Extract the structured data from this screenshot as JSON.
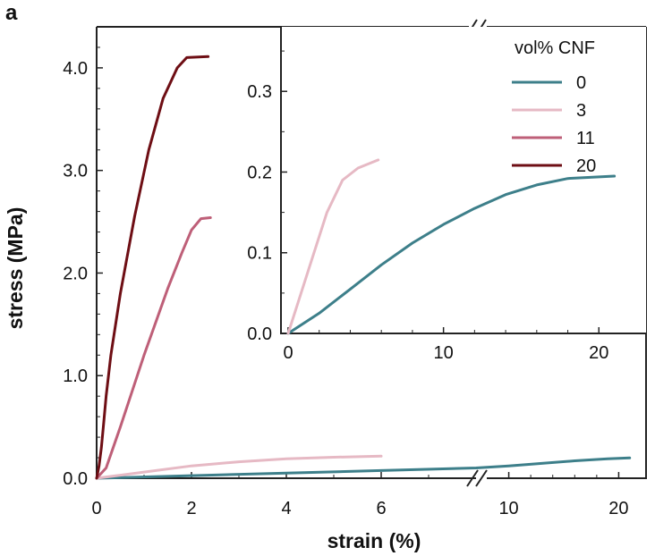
{
  "panel_label": "a",
  "colors": {
    "series_0": "#3d7f8a",
    "series_3": "#e6b9c4",
    "series_11": "#be5f78",
    "series_20": "#6e0e14",
    "axis": "#222222"
  },
  "chart_data": [
    {
      "id": "main",
      "type": "line",
      "xlabel": "strain (%)",
      "ylabel": "stress (MPa)",
      "axis_break": {
        "x_before": 8,
        "x_after": 8
      },
      "xlim_left": [
        0,
        8
      ],
      "xlim_right": [
        8,
        22
      ],
      "ylim": [
        0,
        4.4
      ],
      "xticks_left": [
        {
          "v": 0,
          "label": "0"
        },
        {
          "v": 2,
          "label": "2"
        },
        {
          "v": 4,
          "label": "4"
        },
        {
          "v": 6,
          "label": "6"
        }
      ],
      "xticks_right": [
        {
          "v": 10,
          "label": "10"
        },
        {
          "v": 20,
          "label": "20"
        }
      ],
      "yticks": [
        {
          "v": 0,
          "label": "0.0"
        },
        {
          "v": 1,
          "label": "1.0"
        },
        {
          "v": 2,
          "label": "2.0"
        },
        {
          "v": 3,
          "label": "3.0"
        },
        {
          "v": 4,
          "label": "4.0"
        }
      ],
      "series": [
        {
          "name": "0",
          "color_key": "series_0",
          "points": [
            [
              0,
              0
            ],
            [
              2,
              0.025
            ],
            [
              4,
              0.05
            ],
            [
              6,
              0.075
            ],
            [
              8,
              0.1
            ],
            [
              10,
              0.12
            ],
            [
              13,
              0.145
            ],
            [
              16,
              0.17
            ],
            [
              19,
              0.19
            ],
            [
              21,
              0.198
            ]
          ]
        },
        {
          "name": "3",
          "color_key": "series_3",
          "points": [
            [
              0,
              0
            ],
            [
              0.5,
              0.03
            ],
            [
              1,
              0.06
            ],
            [
              2,
              0.12
            ],
            [
              3,
              0.16
            ],
            [
              4,
              0.19
            ],
            [
              5,
              0.205
            ],
            [
              6,
              0.215
            ]
          ]
        },
        {
          "name": "11",
          "color_key": "series_11",
          "points": [
            [
              0,
              0
            ],
            [
              0.2,
              0.1
            ],
            [
              0.5,
              0.5
            ],
            [
              1,
              1.2
            ],
            [
              1.5,
              1.85
            ],
            [
              1.8,
              2.2
            ],
            [
              2,
              2.42
            ],
            [
              2.2,
              2.53
            ],
            [
              2.4,
              2.54
            ]
          ]
        },
        {
          "name": "20",
          "color_key": "series_20",
          "points": [
            [
              0,
              0
            ],
            [
              0.05,
              0.12
            ],
            [
              0.1,
              0.3
            ],
            [
              0.15,
              0.55
            ],
            [
              0.2,
              0.8
            ],
            [
              0.3,
              1.2
            ],
            [
              0.5,
              1.8
            ],
            [
              0.8,
              2.55
            ],
            [
              1.1,
              3.2
            ],
            [
              1.4,
              3.7
            ],
            [
              1.7,
              4.0
            ],
            [
              1.9,
              4.1
            ],
            [
              2.35,
              4.11
            ]
          ]
        }
      ]
    },
    {
      "id": "inset",
      "type": "line",
      "xlim": [
        0,
        22
      ],
      "ylim": [
        0,
        0.38
      ],
      "xticks": [
        {
          "v": 0,
          "label": "0"
        },
        {
          "v": 10,
          "label": "10"
        },
        {
          "v": 20,
          "label": "20"
        }
      ],
      "yticks": [
        {
          "v": 0,
          "label": "0.0"
        },
        {
          "v": 0.1,
          "label": "0.1"
        },
        {
          "v": 0.2,
          "label": "0.2"
        },
        {
          "v": 0.3,
          "label": "0.3"
        }
      ],
      "series": [
        {
          "name": "0",
          "color_key": "series_0",
          "points": [
            [
              0,
              0
            ],
            [
              2,
              0.025
            ],
            [
              4,
              0.055
            ],
            [
              6,
              0.085
            ],
            [
              8,
              0.112
            ],
            [
              10,
              0.135
            ],
            [
              12,
              0.155
            ],
            [
              14,
              0.172
            ],
            [
              16,
              0.184
            ],
            [
              18,
              0.192
            ],
            [
              21,
              0.195
            ]
          ]
        },
        {
          "name": "3",
          "color_key": "series_3",
          "points": [
            [
              0,
              0
            ],
            [
              0.5,
              0.03
            ],
            [
              1.5,
              0.09
            ],
            [
              2.5,
              0.15
            ],
            [
              3.5,
              0.19
            ],
            [
              4.5,
              0.205
            ],
            [
              5.8,
              0.215
            ]
          ]
        }
      ]
    }
  ],
  "legend": {
    "title": "vol% CNF",
    "placement": "top-right of inset",
    "entries": [
      {
        "label": "0",
        "color_key": "series_0"
      },
      {
        "label": "3",
        "color_key": "series_3"
      },
      {
        "label": "11",
        "color_key": "series_11"
      },
      {
        "label": "20",
        "color_key": "series_20"
      }
    ]
  }
}
